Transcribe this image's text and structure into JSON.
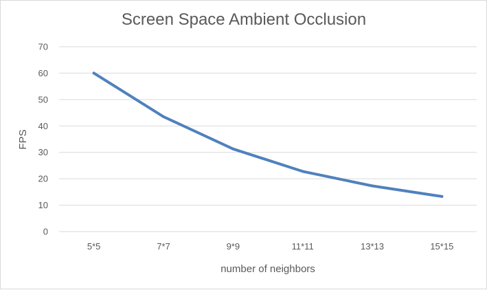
{
  "chart_data": {
    "type": "line",
    "title": "Screen Space Ambient Occlusion",
    "xlabel": "number of neighbors",
    "ylabel": "FPS",
    "categories": [
      "5*5",
      "7*7",
      "9*9",
      "11*11",
      "13*13",
      "15*15"
    ],
    "series": [
      {
        "values": [
          60,
          43.5,
          31.3,
          22.8,
          17.3,
          13.3
        ],
        "color": "#4f81bd"
      }
    ],
    "ylim": [
      0,
      70
    ],
    "yticks": [
      0,
      10,
      20,
      30,
      40,
      50,
      60,
      70
    ],
    "grid": true,
    "legend": "none"
  }
}
